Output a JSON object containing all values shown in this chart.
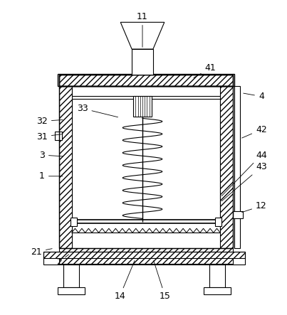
{
  "bg_color": "#ffffff",
  "figsize": [
    4.03,
    4.43
  ],
  "dpi": 100,
  "labels_info": {
    "11": [
      200,
      22,
      200,
      68
    ],
    "41": [
      296,
      95,
      270,
      110
    ],
    "4": [
      368,
      135,
      340,
      130
    ],
    "42": [
      368,
      182,
      338,
      195
    ],
    "44": [
      368,
      218,
      310,
      278
    ],
    "43": [
      368,
      235,
      310,
      285
    ],
    "12": [
      368,
      290,
      338,
      300
    ],
    "15": [
      232,
      418,
      215,
      365
    ],
    "14": [
      168,
      418,
      190,
      365
    ],
    "2": [
      82,
      370,
      98,
      357
    ],
    "21": [
      50,
      355,
      75,
      350
    ],
    "1": [
      58,
      248,
      90,
      248
    ],
    "3": [
      58,
      218,
      90,
      220
    ],
    "31": [
      58,
      192,
      90,
      188
    ],
    "32": [
      58,
      170,
      90,
      168
    ],
    "33": [
      115,
      152,
      168,
      165
    ]
  }
}
